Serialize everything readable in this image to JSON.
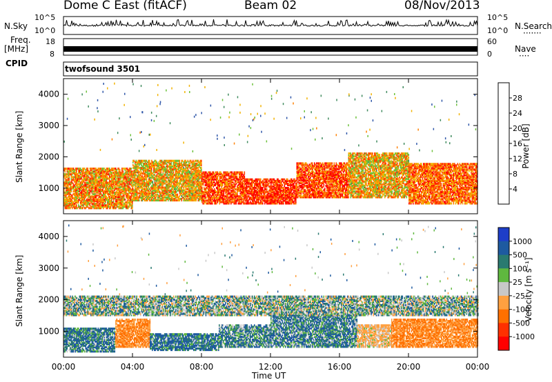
{
  "header": {
    "title": "Dome C East (fitACF)",
    "beam": "Beam 02",
    "date": "08/Nov/2013"
  },
  "strip_panels": {
    "nsky_label": "N.Sky",
    "nsky_ticks": [
      "10^5",
      "10^0"
    ],
    "nsearch_label": "N.Search",
    "nsearch_dots": "·······",
    "nsearch_ticks": [
      "10^5",
      "10^0"
    ],
    "freq_label": "Freq.",
    "freq_unit": "[MHz]",
    "freq_ticks": [
      "18",
      "8"
    ],
    "nave_label": "Nave",
    "nave_dots": "····",
    "nave_ticks": [
      "60",
      "0"
    ],
    "cpid_label": "CPID",
    "cpid_value": "twofsound 3501"
  },
  "colors": {
    "power_scale": [
      "#0000ff",
      "#2d55a8",
      "#3f8a5e",
      "#6cc13a",
      "#f2b200",
      "#ff8000",
      "#ff4000",
      "#ff0000"
    ],
    "velocity_scale": [
      "#1e3ec8",
      "#1e5aa0",
      "#2a7a70",
      "#5fb83f",
      "#c8c8c8",
      "#ffa040",
      "#ff7000",
      "#ff3000",
      "#ff0000"
    ]
  },
  "chart_data": [
    {
      "type": "heatmap",
      "panel": "power",
      "ylabel": "Slant Range [km]",
      "xlabel": "",
      "y_ticks": [
        "1000",
        "2000",
        "3000",
        "4000"
      ],
      "ylim": [
        180,
        4500
      ],
      "x_ticks": [
        "00:00",
        "04:00",
        "08:00",
        "12:00",
        "16:00",
        "20:00",
        "00:00"
      ],
      "xlim": [
        0,
        24
      ],
      "colorbar": {
        "label": "Power [dB]",
        "tick_labels": [
          "4",
          "8",
          "12",
          "16",
          "20",
          "24",
          "28"
        ],
        "range": [
          0,
          30
        ]
      },
      "bands": [
        {
          "x": [
            0.0,
            4.0
          ],
          "y": [
            350,
            1650
          ],
          "value": 20
        },
        {
          "x": [
            4.0,
            8.0
          ],
          "y": [
            600,
            1900
          ],
          "value": 18
        },
        {
          "x": [
            8.0,
            10.5
          ],
          "y": [
            500,
            1500
          ],
          "value": 24
        },
        {
          "x": [
            10.5,
            13.5
          ],
          "y": [
            500,
            1300
          ],
          "value": 26
        },
        {
          "x": [
            13.5,
            16.5
          ],
          "y": [
            700,
            1800
          ],
          "value": 24
        },
        {
          "x": [
            16.5,
            20.0
          ],
          "y": [
            700,
            2100
          ],
          "value": 18
        },
        {
          "x": [
            20.0,
            24.0
          ],
          "y": [
            500,
            1800
          ],
          "value": 22
        }
      ]
    },
    {
      "type": "heatmap",
      "panel": "velocity",
      "ylabel": "Slant Range [km]",
      "xlabel": "Time UT",
      "y_ticks": [
        "1000",
        "2000",
        "3000",
        "4000"
      ],
      "ylim": [
        180,
        4500
      ],
      "x_ticks": [
        "00:00",
        "04:00",
        "08:00",
        "12:00",
        "16:00",
        "20:00",
        "00:00"
      ],
      "xlim": [
        0,
        24
      ],
      "colorbar": {
        "label": "Velocity [m s⁻¹]",
        "tick_labels": [
          "1000",
          "500",
          "100",
          "25",
          "-25",
          "-100",
          "-500",
          "-1000"
        ],
        "range": [
          -1000,
          1000
        ]
      },
      "bands": [
        {
          "x": [
            0.0,
            3.0
          ],
          "y": [
            350,
            1100
          ],
          "value": 100
        },
        {
          "x": [
            3.0,
            5.0
          ],
          "y": [
            500,
            1400
          ],
          "value": -300
        },
        {
          "x": [
            5.0,
            9.0
          ],
          "y": [
            400,
            900
          ],
          "value": 120
        },
        {
          "x": [
            9.0,
            12.0
          ],
          "y": [
            500,
            1200
          ],
          "value": 60
        },
        {
          "x": [
            12.0,
            17.0
          ],
          "y": [
            500,
            1500
          ],
          "value": 80
        },
        {
          "x": [
            17.0,
            19.0
          ],
          "y": [
            500,
            1200
          ],
          "value": -150
        },
        {
          "x": [
            19.0,
            24.0
          ],
          "y": [
            500,
            1400
          ],
          "value": -300
        },
        {
          "x": [
            0.0,
            24.0
          ],
          "y": [
            1500,
            2100
          ],
          "value": 0
        }
      ]
    }
  ]
}
